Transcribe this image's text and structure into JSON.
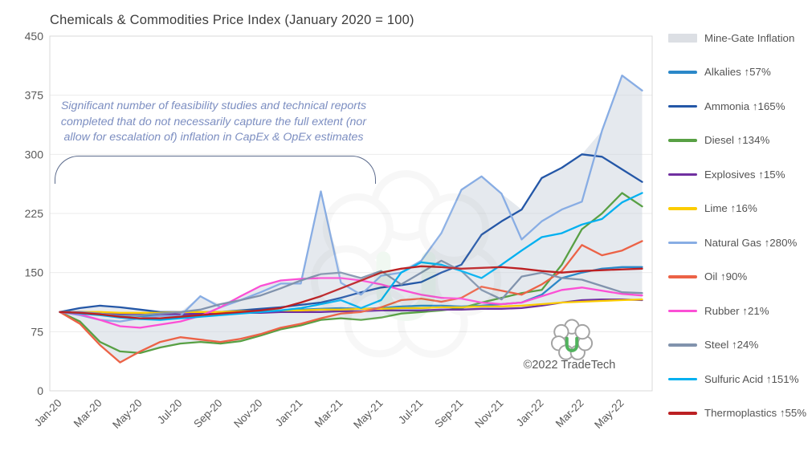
{
  "chart_data": {
    "type": "line",
    "title": "Chemicals & Commodities Price Index (January 2020 = 100)",
    "xlabel": "",
    "ylabel": "",
    "ylim": [
      0,
      450
    ],
    "y_ticks": [
      0,
      75,
      150,
      225,
      300,
      375,
      450
    ],
    "x_tick_step": 2,
    "grid": "horizontal",
    "legend_position": "right",
    "categories": [
      "Jan-20",
      "Feb-20",
      "Mar-20",
      "Apr-20",
      "May-20",
      "Jun-20",
      "Jul-20",
      "Aug-20",
      "Sep-20",
      "Oct-20",
      "Nov-20",
      "Dec-20",
      "Jan-21",
      "Feb-21",
      "Mar-21",
      "Apr-21",
      "May-21",
      "Jun-21",
      "Jul-21",
      "Aug-21",
      "Sep-21",
      "Oct-21",
      "Nov-21",
      "Dec-21",
      "Jan-22",
      "Feb-22",
      "Mar-22",
      "Apr-22",
      "May-22",
      "Jun-22"
    ],
    "band": {
      "name": "Mine-Gate Inflation",
      "legend_label": "Mine-Gate Inflation",
      "color": "#ccd3dd",
      "opacity": 0.5,
      "derivation": "envelope_min_max_of_series"
    },
    "series": [
      {
        "name": "Alkalies",
        "legend_label": "Alkalies ↑57%",
        "color": "#2b88c8",
        "values": [
          100,
          99,
          97,
          96,
          95,
          95,
          96,
          97,
          98,
          100,
          101,
          102,
          103,
          104,
          105,
          104,
          105,
          107,
          108,
          108,
          107,
          108,
          110,
          112,
          122,
          143,
          150,
          155,
          157,
          157
        ]
      },
      {
        "name": "Ammonia",
        "legend_label": "Ammonia ↑165%",
        "color": "#2457a7",
        "values": [
          100,
          105,
          108,
          106,
          103,
          100,
          100,
          100,
          100,
          102,
          104,
          106,
          109,
          112,
          118,
          125,
          131,
          134,
          138,
          150,
          160,
          198,
          215,
          230,
          270,
          283,
          300,
          297,
          281,
          265
        ]
      },
      {
        "name": "Diesel",
        "legend_label": "Diesel ↑134%",
        "color": "#58a044",
        "values": [
          100,
          88,
          62,
          50,
          48,
          55,
          60,
          62,
          60,
          63,
          70,
          78,
          83,
          90,
          92,
          90,
          93,
          98,
          100,
          102,
          105,
          112,
          118,
          124,
          128,
          160,
          205,
          225,
          251,
          234
        ]
      },
      {
        "name": "Explosives",
        "legend_label": "Explosives ↑15%",
        "color": "#7030a0",
        "values": [
          100,
          100,
          99,
          98,
          98,
          97,
          97,
          98,
          98,
          99,
          99,
          100,
          100,
          100,
          101,
          101,
          102,
          102,
          102,
          103,
          103,
          104,
          104,
          105,
          108,
          112,
          115,
          116,
          116,
          115
        ]
      },
      {
        "name": "Lime",
        "legend_label": "Lime ↑16%",
        "color": "#fccc00",
        "values": [
          100,
          100,
          100,
          99,
          99,
          99,
          100,
          100,
          100,
          101,
          101,
          102,
          102,
          103,
          103,
          104,
          104,
          105,
          105,
          106,
          106,
          107,
          107,
          108,
          110,
          112,
          113,
          114,
          115,
          116
        ]
      },
      {
        "name": "Natural Gas",
        "legend_label": "Natural Gas ↑280%",
        "color": "#88ade4",
        "values": [
          100,
          96,
          90,
          88,
          92,
          95,
          95,
          120,
          106,
          115,
          125,
          136,
          136,
          253,
          137,
          122,
          146,
          150,
          165,
          200,
          255,
          272,
          250,
          192,
          215,
          230,
          240,
          330,
          400,
          381
        ]
      },
      {
        "name": "Oil",
        "legend_label": "Oil ↑90%",
        "color": "#ec6246",
        "values": [
          100,
          85,
          58,
          36,
          50,
          62,
          68,
          65,
          62,
          66,
          72,
          80,
          85,
          92,
          98,
          100,
          106,
          115,
          117,
          113,
          118,
          132,
          127,
          122,
          135,
          152,
          185,
          172,
          178,
          190
        ]
      },
      {
        "name": "Rubber",
        "legend_label": "Rubber ↑21%",
        "color": "#fb4fd5",
        "values": [
          100,
          97,
          90,
          82,
          80,
          84,
          88,
          95,
          106,
          120,
          133,
          140,
          142,
          143,
          143,
          140,
          135,
          128,
          122,
          118,
          117,
          112,
          110,
          112,
          120,
          128,
          131,
          127,
          123,
          121
        ]
      },
      {
        "name": "Steel",
        "legend_label": "Steel ↑24%",
        "color": "#8193ad",
        "values": [
          100,
          100,
          98,
          95,
          96,
          98,
          100,
          103,
          110,
          115,
          121,
          130,
          140,
          148,
          150,
          143,
          152,
          135,
          150,
          165,
          152,
          128,
          116,
          145,
          150,
          143,
          141,
          133,
          125,
          124
        ]
      },
      {
        "name": "Sulfuric Acid",
        "legend_label": "Sulfuric Acid ↑151%",
        "color": "#00b0f0",
        "values": [
          100,
          98,
          96,
          93,
          91,
          90,
          92,
          94,
          96,
          98,
          100,
          102,
          105,
          110,
          115,
          105,
          115,
          150,
          163,
          160,
          152,
          143,
          160,
          178,
          195,
          200,
          211,
          218,
          239,
          251
        ]
      },
      {
        "name": "Thermoplastics",
        "legend_label": "Thermoplastics ↑55%",
        "color": "#bc2023",
        "values": [
          100,
          99,
          97,
          94,
          92,
          92,
          94,
          96,
          98,
          100,
          102,
          105,
          112,
          120,
          130,
          140,
          150,
          155,
          158,
          157,
          155,
          156,
          157,
          155,
          152,
          150,
          152,
          153,
          154,
          155
        ]
      }
    ]
  },
  "annotation": {
    "lines": [
      "Significant number of feasibility studies and technical reports",
      "completed that do not necessarily capture the full extent (nor",
      "allow for escalation of) inflation in CapEx & OpEx estimates"
    ]
  },
  "watermark": {
    "copyright": "©2022 TradeTech"
  }
}
